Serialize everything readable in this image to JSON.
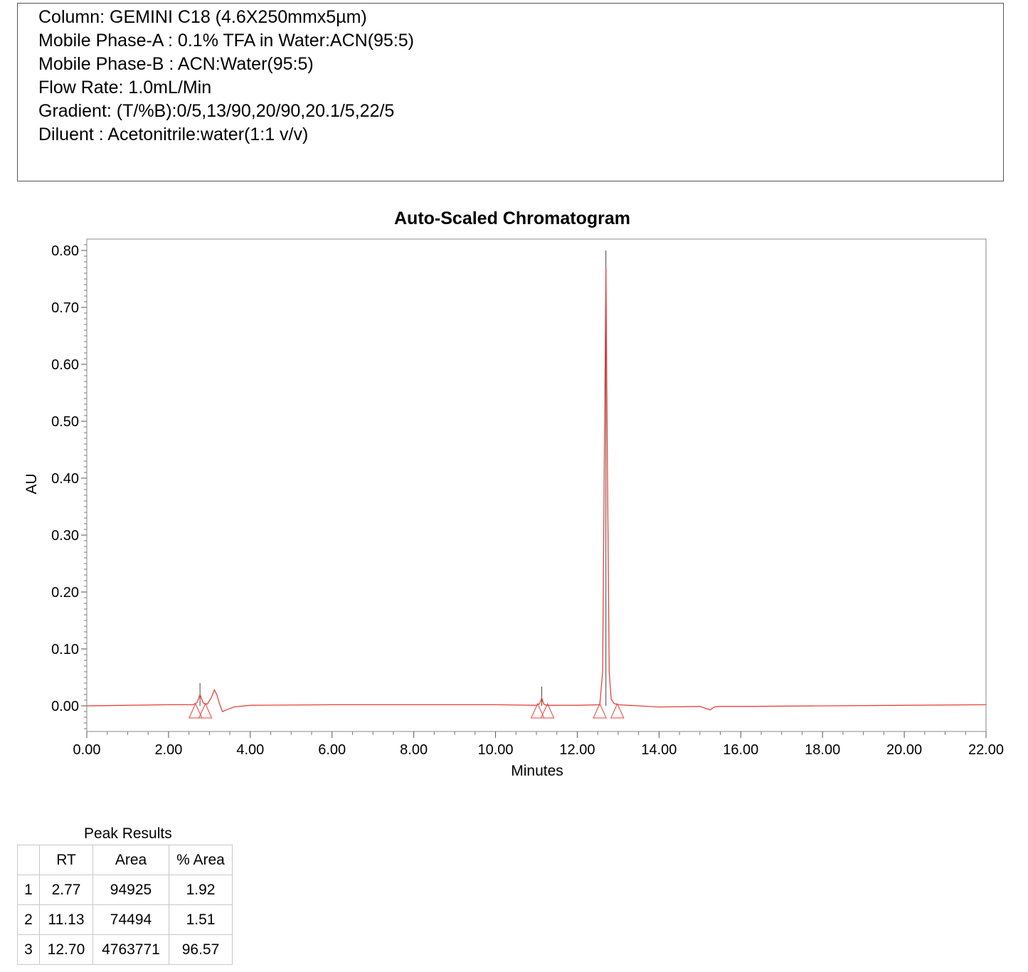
{
  "method": {
    "lines": [
      "Column: GEMINI C18 (4.6X250mmx5µm)",
      "Mobile Phase-A : 0.1% TFA in Water:ACN(95:5)",
      "Mobile Phase-B : ACN:Water(95:5)",
      "Flow Rate: 1.0mL/Min",
      "Gradient: (T/%B):0/5,13/90,20/90,20.1/5,22/5",
      "Diluent : Acetonitrile:water(1:1 v/v)"
    ]
  },
  "chart_data": {
    "type": "line",
    "title": "Auto-Scaled Chromatogram",
    "xlabel": "Minutes",
    "ylabel": "AU",
    "xlim": [
      0,
      22
    ],
    "ylim": [
      -0.045,
      0.82
    ],
    "x_ticks": [
      "0.00",
      "2.00",
      "4.00",
      "6.00",
      "8.00",
      "10.00",
      "12.00",
      "14.00",
      "16.00",
      "18.00",
      "20.00",
      "22.00"
    ],
    "y_ticks": [
      "0.00",
      "0.10",
      "0.20",
      "0.30",
      "0.40",
      "0.50",
      "0.60",
      "0.70",
      "0.80"
    ],
    "grid": false,
    "series": [
      {
        "color": "#e8423c",
        "x": [
          0,
          1.0,
          2.0,
          2.6,
          2.7,
          2.77,
          2.85,
          2.95,
          3.05,
          3.12,
          3.18,
          3.25,
          3.32,
          3.45,
          3.6,
          4.0,
          6.0,
          8.0,
          10.0,
          11.0,
          11.08,
          11.13,
          11.18,
          11.25,
          11.4,
          12.0,
          12.55,
          12.62,
          12.66,
          12.7,
          12.74,
          12.78,
          12.83,
          12.9,
          13.0,
          14.0,
          15.0,
          15.25,
          15.35,
          15.45,
          16.0,
          18.0,
          20.0,
          22.0
        ],
        "y": [
          0.0,
          0.001,
          0.002,
          0.002,
          0.006,
          0.02,
          0.005,
          0.003,
          0.015,
          0.028,
          0.02,
          0.003,
          -0.01,
          -0.006,
          -0.002,
          0.001,
          0.002,
          0.002,
          0.002,
          0.001,
          0.004,
          0.014,
          0.003,
          0.001,
          0.001,
          0.001,
          0.002,
          0.06,
          0.42,
          0.77,
          0.4,
          0.06,
          0.012,
          0.004,
          0.002,
          -0.002,
          -0.001,
          -0.007,
          -0.002,
          -0.001,
          -0.001,
          0.0,
          0.001,
          0.002
        ]
      }
    ],
    "peaks": [
      {
        "rt": 2.77,
        "marker_top": 0.04,
        "start": 2.66,
        "end": 2.9
      },
      {
        "rt": 11.13,
        "marker_top": 0.034,
        "start": 11.03,
        "end": 11.27
      },
      {
        "rt": 12.7,
        "marker_top": 0.8,
        "start": 12.55,
        "end": 12.98
      }
    ]
  },
  "results": {
    "caption": "Peak Results",
    "headers": [
      "RT",
      "Area",
      "% Area"
    ],
    "rows": [
      [
        "1",
        "2.77",
        "94925",
        "1.92"
      ],
      [
        "2",
        "11.13",
        "74494",
        "1.51"
      ],
      [
        "3",
        "12.70",
        "4763771",
        "96.57"
      ]
    ]
  }
}
